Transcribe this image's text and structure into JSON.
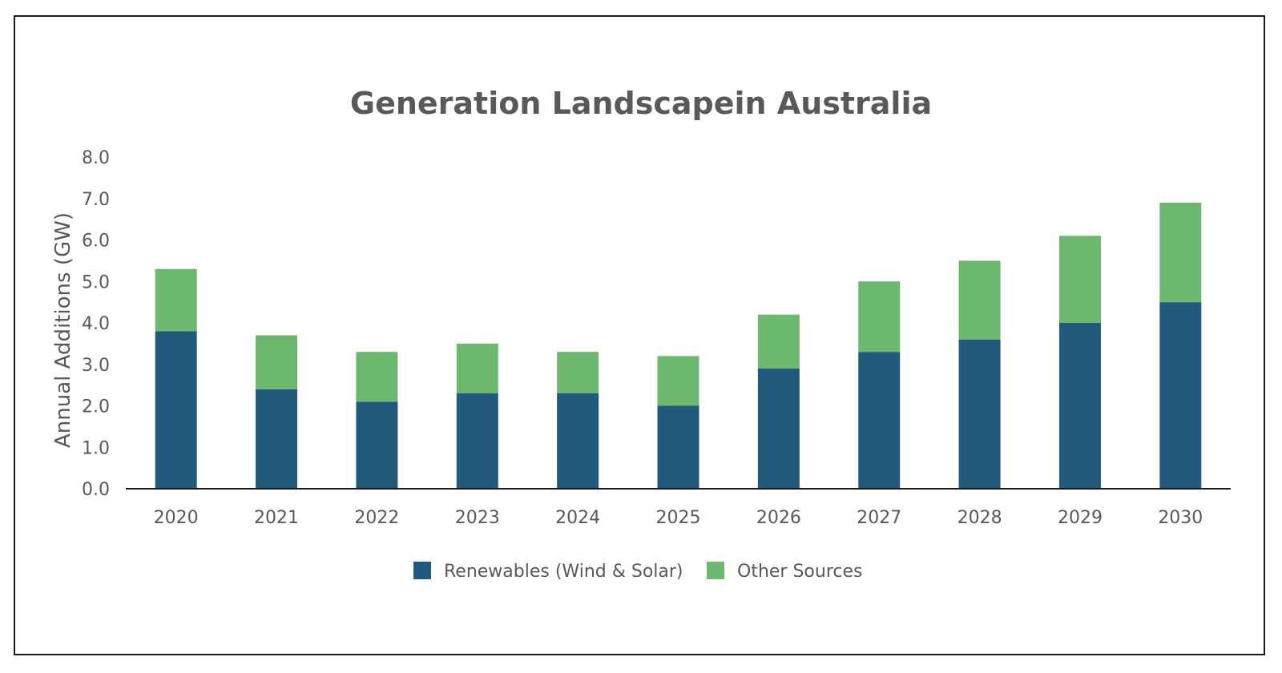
{
  "chart_data": {
    "type": "bar",
    "stacked": true,
    "title": "Generation Landscapein Australia",
    "xlabel": "",
    "ylabel": "Annual Additions (GW)",
    "ylim": [
      0,
      8
    ],
    "yticks": [
      "0.0",
      "1.0",
      "2.0",
      "3.0",
      "4.0",
      "5.0",
      "6.0",
      "7.0",
      "8.0"
    ],
    "grid": false,
    "legend_position": "bottom",
    "categories": [
      "2020",
      "2021",
      "2022",
      "2023",
      "2024",
      "2025",
      "2026",
      "2027",
      "2028",
      "2029",
      "2030"
    ],
    "series": [
      {
        "name": "Renewables (Wind & Solar)",
        "color": "#215a7c",
        "values": [
          3.8,
          2.4,
          2.1,
          2.3,
          2.3,
          2.0,
          2.9,
          3.3,
          3.6,
          4.0,
          4.5
        ]
      },
      {
        "name": "Other Sources",
        "color": "#6cb86e",
        "values": [
          1.5,
          1.3,
          1.2,
          1.2,
          1.0,
          1.2,
          1.3,
          1.7,
          1.9,
          2.1,
          2.4
        ]
      }
    ]
  }
}
